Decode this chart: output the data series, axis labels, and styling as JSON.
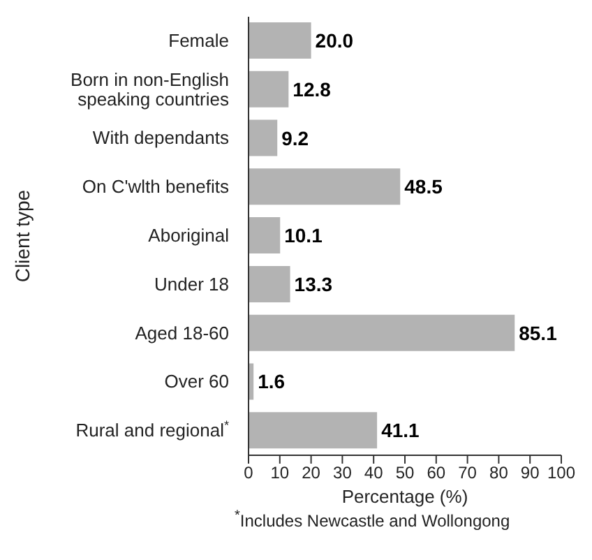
{
  "chart_data": {
    "type": "bar",
    "orientation": "horizontal",
    "xlabel": "Percentage (%)",
    "ylabel": "Client type",
    "categories": [
      "Female",
      "Born in non-English speaking countries",
      "With dependants",
      "On C'wlth benefits",
      "Aboriginal",
      "Under 18",
      "Aged 18-60",
      "Over 60",
      "Rural and regional$^{*}$"
    ],
    "values": [
      20.0,
      12.8,
      9.2,
      48.5,
      10.1,
      13.3,
      85.1,
      1.6,
      41.1
    ],
    "value_labels": [
      "20.0",
      "12.8",
      "9.2",
      "48.5",
      "10.1",
      "13.3",
      "85.1",
      "1.6",
      "41.1"
    ],
    "color": "#b3b3b3",
    "xlim": [
      0,
      100
    ],
    "xticks": [
      0,
      10,
      20,
      30,
      40,
      50,
      60,
      70,
      80,
      90,
      100
    ],
    "grid": false,
    "legend": false,
    "annotations": [
      "$^{*}$Includes Newcastle and Wollongong"
    ]
  }
}
